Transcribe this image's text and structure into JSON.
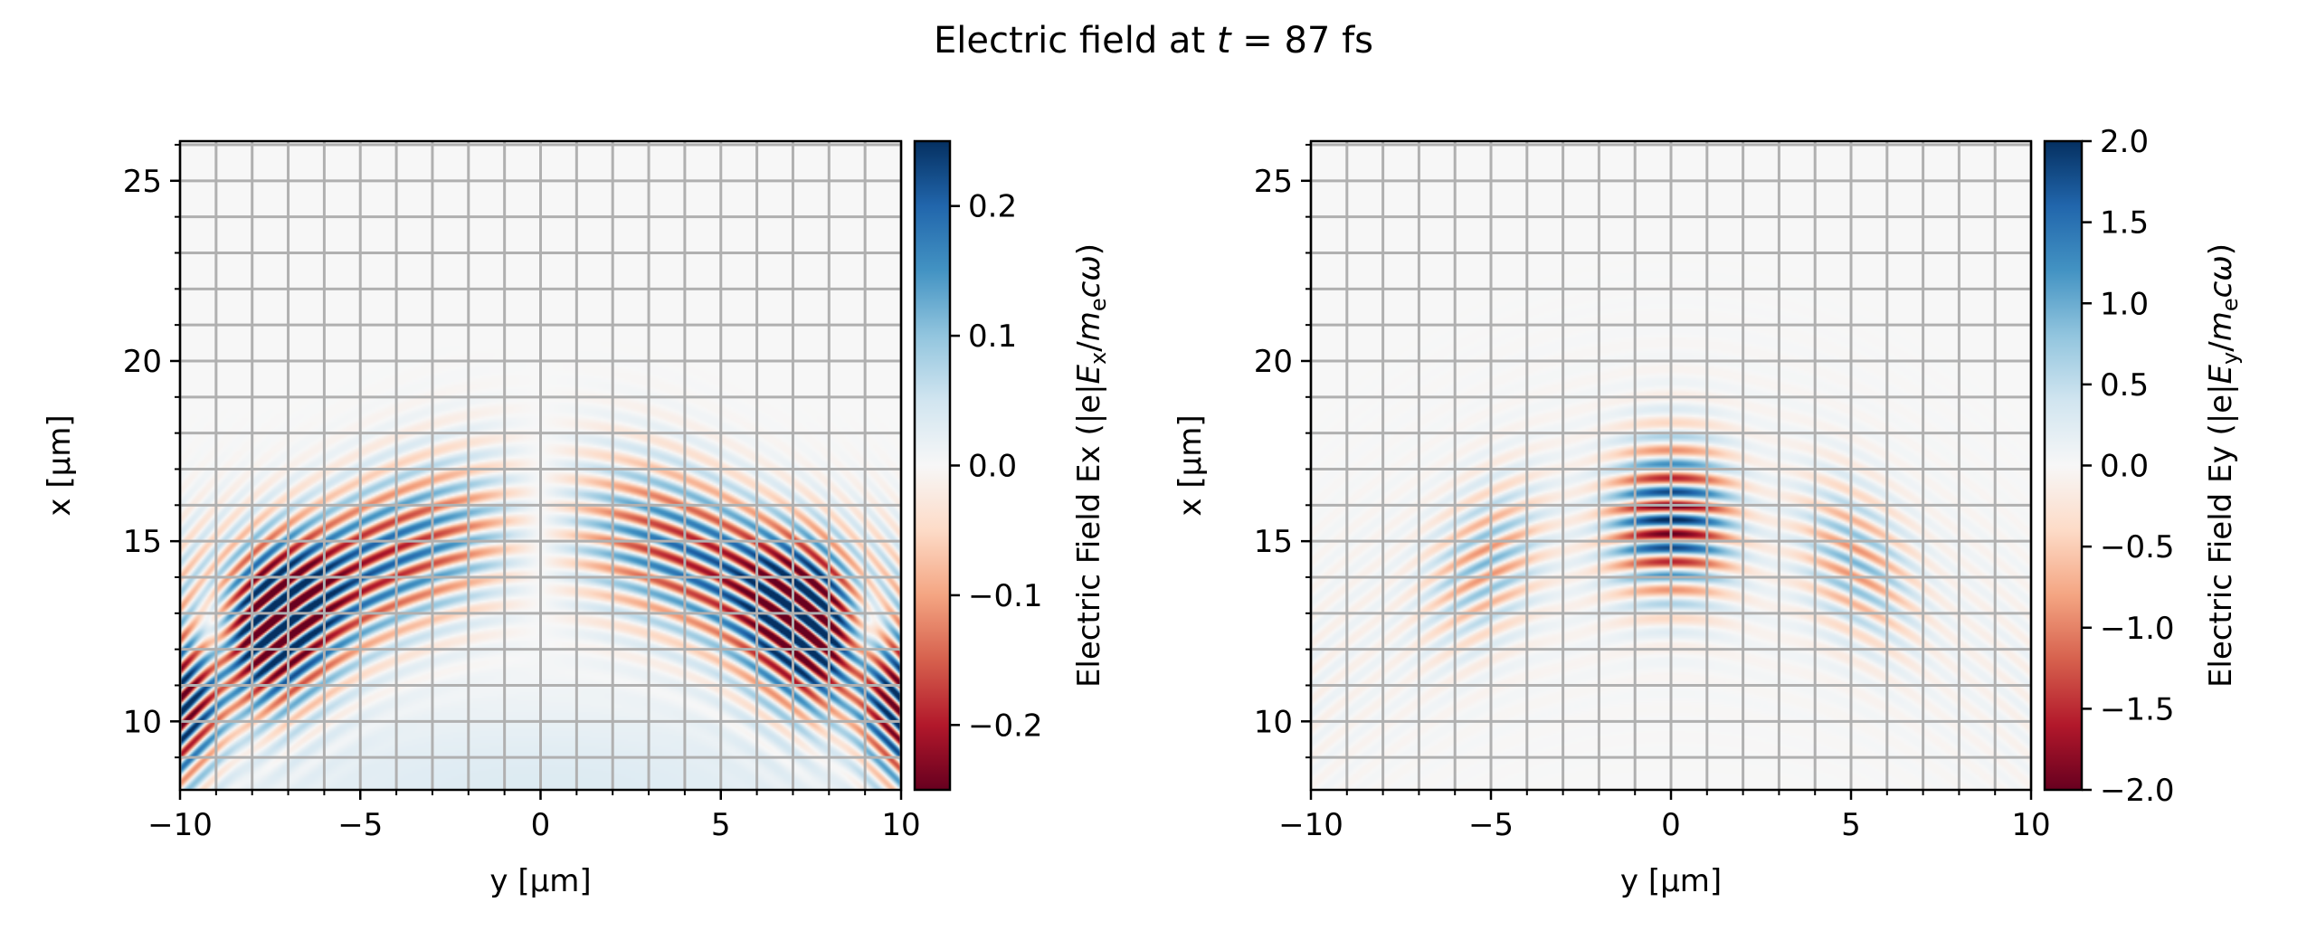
{
  "figure": {
    "title": {
      "prefix": "Electric field at ",
      "var": "t",
      "suffix": " = 87 fs"
    }
  },
  "chart_data": [
    {
      "type": "heatmap",
      "field": "Ex",
      "xlabel": "y [µm]",
      "ylabel": "x [µm]",
      "xlim": [
        -10,
        10
      ],
      "ylim": [
        8.1,
        26.1
      ],
      "xticks": [
        "−10",
        "−5",
        "0",
        "5",
        "10"
      ],
      "xtick_values": [
        -10,
        -5,
        0,
        5,
        10
      ],
      "yticks": [
        "10",
        "15",
        "20",
        "25"
      ],
      "ytick_values": [
        10,
        15,
        20,
        25
      ],
      "minor_tick_step": 1,
      "grid": true,
      "grid_step": 1,
      "colormap": "RdBu",
      "clim": [
        -0.25,
        0.25
      ],
      "colorbar_ticks": [
        "0.2",
        "0.1",
        "0.0",
        "−0.1",
        "−0.2"
      ],
      "colorbar_tick_values": [
        0.2,
        0.1,
        0.0,
        -0.1,
        -0.2
      ],
      "colorbar_label": {
        "text": "Electric Field Ex (|e|",
        "v1": "E",
        "s1": "x",
        "slash": "/",
        "v2": "m",
        "s2": "e",
        "v3": "cω",
        "end": ")"
      }
    },
    {
      "type": "heatmap",
      "field": "Ey",
      "xlabel": "y [µm]",
      "ylabel": "x [µm]",
      "xlim": [
        -10,
        10
      ],
      "ylim": [
        8.1,
        26.1
      ],
      "xticks": [
        "−10",
        "−5",
        "0",
        "5",
        "10"
      ],
      "xtick_values": [
        -10,
        -5,
        0,
        5,
        10
      ],
      "yticks": [
        "10",
        "15",
        "20",
        "25"
      ],
      "ytick_values": [
        10,
        15,
        20,
        25
      ],
      "minor_tick_step": 1,
      "grid": true,
      "grid_step": 1,
      "colormap": "RdBu",
      "clim": [
        -2.0,
        2.0
      ],
      "colorbar_ticks": [
        "2.0",
        "1.5",
        "1.0",
        "0.5",
        "0.0",
        "−0.5",
        "−1.0",
        "−1.5",
        "−2.0"
      ],
      "colorbar_tick_values": [
        2.0,
        1.5,
        1.0,
        0.5,
        0.0,
        -0.5,
        -1.0,
        -1.5,
        -2.0
      ],
      "colorbar_label": {
        "text": "Electric Field Ey (|e|",
        "v1": "E",
        "s1": "y",
        "slash": "/",
        "v2": "m",
        "s2": "e",
        "v3": "cω",
        "end": ")"
      }
    }
  ]
}
